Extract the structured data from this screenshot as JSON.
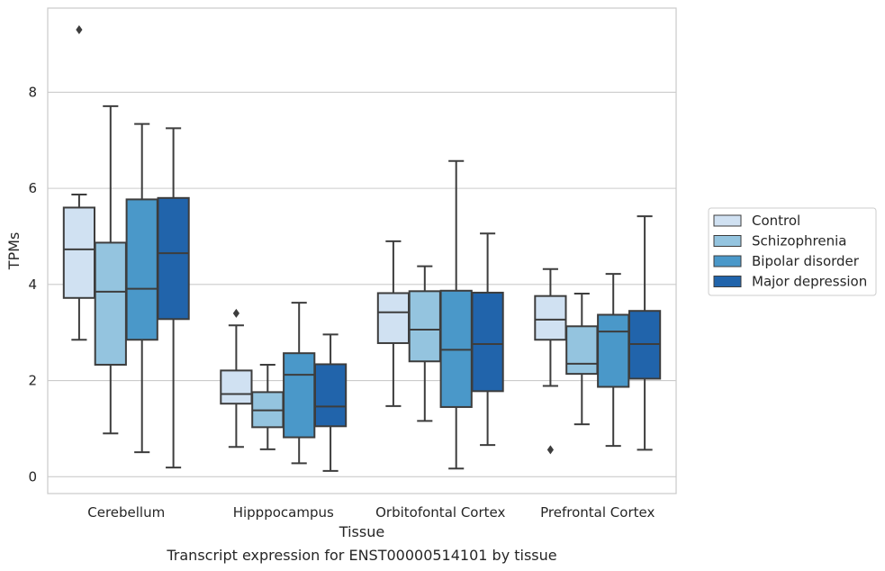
{
  "chart_data": {
    "type": "box",
    "title": "",
    "caption": "Transcript expression for ENST00000514101 by tissue",
    "xlabel": "Tissue",
    "ylabel": "TPMs",
    "ylim": [
      -0.35,
      9.75
    ],
    "yticks": [
      0,
      2,
      4,
      6,
      8
    ],
    "grid": "horizontal",
    "legend_position": "right",
    "categories": [
      "Cerebellum",
      "Hipppocampus",
      "Orbitofontal Cortex",
      "Prefrontal Cortex"
    ],
    "series": [
      {
        "name": "Control",
        "color": "#d0e1f2",
        "boxes": [
          {
            "whislo": 2.85,
            "q1": 3.72,
            "med": 4.73,
            "q3": 5.6,
            "whishi": 5.87,
            "fliers": [
              9.3
            ]
          },
          {
            "whislo": 0.62,
            "q1": 1.52,
            "med": 1.72,
            "q3": 2.21,
            "whishi": 3.15,
            "fliers": [
              3.4
            ]
          },
          {
            "whislo": 1.47,
            "q1": 2.78,
            "med": 3.42,
            "q3": 3.82,
            "whishi": 4.9,
            "fliers": []
          },
          {
            "whislo": 1.89,
            "q1": 2.85,
            "med": 3.27,
            "q3": 3.76,
            "whishi": 4.32,
            "fliers": [
              0.56
            ]
          }
        ]
      },
      {
        "name": "Schizophrenia",
        "color": "#94c4df",
        "boxes": [
          {
            "whislo": 0.9,
            "q1": 2.33,
            "med": 3.85,
            "q3": 4.87,
            "whishi": 7.71,
            "fliers": []
          },
          {
            "whislo": 0.57,
            "q1": 1.03,
            "med": 1.38,
            "q3": 1.76,
            "whishi": 2.33,
            "fliers": []
          },
          {
            "whislo": 1.16,
            "q1": 2.4,
            "med": 3.06,
            "q3": 3.86,
            "whishi": 4.38,
            "fliers": []
          },
          {
            "whislo": 1.09,
            "q1": 2.14,
            "med": 2.35,
            "q3": 3.13,
            "whishi": 3.81,
            "fliers": []
          }
        ]
      },
      {
        "name": "Bipolar disorder",
        "color": "#4a98c9",
        "boxes": [
          {
            "whislo": 0.51,
            "q1": 2.85,
            "med": 3.91,
            "q3": 5.77,
            "whishi": 7.34,
            "fliers": []
          },
          {
            "whislo": 0.28,
            "q1": 0.82,
            "med": 2.12,
            "q3": 2.57,
            "whishi": 3.62,
            "fliers": []
          },
          {
            "whislo": 0.17,
            "q1": 1.45,
            "med": 2.64,
            "q3": 3.87,
            "whishi": 6.57,
            "fliers": []
          },
          {
            "whislo": 0.64,
            "q1": 1.87,
            "med": 3.02,
            "q3": 3.37,
            "whishi": 4.22,
            "fliers": []
          }
        ]
      },
      {
        "name": "Major depression",
        "color": "#2164ab",
        "boxes": [
          {
            "whislo": 0.19,
            "q1": 3.28,
            "med": 4.65,
            "q3": 5.8,
            "whishi": 7.25,
            "fliers": []
          },
          {
            "whislo": 0.12,
            "q1": 1.05,
            "med": 1.46,
            "q3": 2.34,
            "whishi": 2.96,
            "fliers": []
          },
          {
            "whislo": 0.66,
            "q1": 1.78,
            "med": 2.76,
            "q3": 3.83,
            "whishi": 5.06,
            "fliers": []
          },
          {
            "whislo": 0.56,
            "q1": 2.04,
            "med": 2.76,
            "q3": 3.45,
            "whishi": 5.42,
            "fliers": []
          }
        ]
      }
    ]
  }
}
